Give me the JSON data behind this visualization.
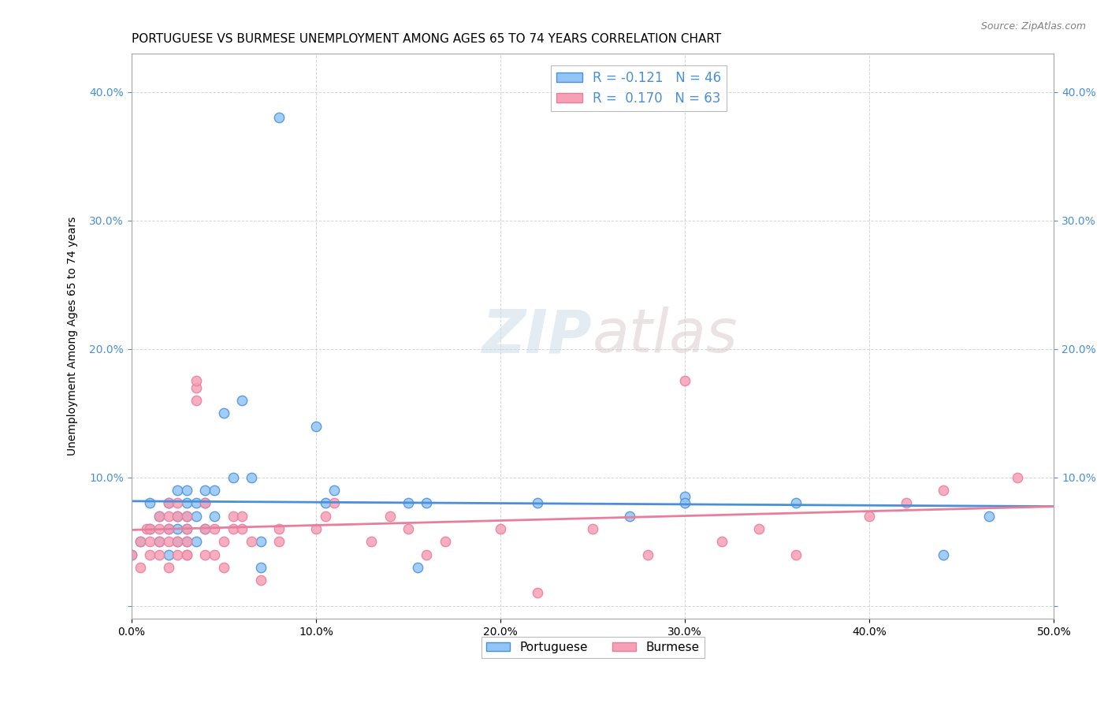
{
  "title": "PORTUGUESE VS BURMESE UNEMPLOYMENT AMONG AGES 65 TO 74 YEARS CORRELATION CHART",
  "source": "Source: ZipAtlas.com",
  "ylabel": "Unemployment Among Ages 65 to 74 years",
  "xlim": [
    0,
    0.5
  ],
  "ylim": [
    -0.01,
    0.43
  ],
  "xticks": [
    0.0,
    0.1,
    0.2,
    0.3,
    0.4,
    0.5
  ],
  "yticks": [
    0.0,
    0.1,
    0.2,
    0.3,
    0.4
  ],
  "ytick_labels": [
    "",
    "10.0%",
    "20.0%",
    "30.0%",
    "40.0%"
  ],
  "xtick_labels": [
    "0.0%",
    "10.0%",
    "20.0%",
    "30.0%",
    "40.0%",
    "50.0%"
  ],
  "portuguese_color": "#92C5F5",
  "burmese_color": "#F5A0B5",
  "portuguese_line_color": "#4A90D9",
  "burmese_line_color": "#E87E9E",
  "portuguese_R": -0.121,
  "portuguese_N": 46,
  "burmese_R": 0.17,
  "burmese_N": 63,
  "portuguese_scatter_x": [
    0.0,
    0.005,
    0.01,
    0.01,
    0.015,
    0.015,
    0.02,
    0.02,
    0.02,
    0.025,
    0.025,
    0.025,
    0.025,
    0.03,
    0.03,
    0.03,
    0.03,
    0.03,
    0.035,
    0.035,
    0.035,
    0.04,
    0.04,
    0.04,
    0.045,
    0.045,
    0.05,
    0.055,
    0.06,
    0.065,
    0.07,
    0.07,
    0.08,
    0.1,
    0.105,
    0.11,
    0.15,
    0.155,
    0.16,
    0.22,
    0.27,
    0.3,
    0.3,
    0.36,
    0.44,
    0.465
  ],
  "portuguese_scatter_y": [
    0.04,
    0.05,
    0.06,
    0.08,
    0.05,
    0.07,
    0.04,
    0.06,
    0.08,
    0.05,
    0.07,
    0.09,
    0.06,
    0.05,
    0.07,
    0.08,
    0.09,
    0.06,
    0.05,
    0.07,
    0.08,
    0.06,
    0.08,
    0.09,
    0.07,
    0.09,
    0.15,
    0.1,
    0.16,
    0.1,
    0.05,
    0.03,
    0.38,
    0.14,
    0.08,
    0.09,
    0.08,
    0.03,
    0.08,
    0.08,
    0.07,
    0.085,
    0.08,
    0.08,
    0.04,
    0.07
  ],
  "burmese_scatter_x": [
    0.0,
    0.005,
    0.005,
    0.008,
    0.01,
    0.01,
    0.01,
    0.015,
    0.015,
    0.015,
    0.015,
    0.02,
    0.02,
    0.02,
    0.02,
    0.02,
    0.025,
    0.025,
    0.025,
    0.025,
    0.03,
    0.03,
    0.03,
    0.03,
    0.03,
    0.035,
    0.035,
    0.035,
    0.04,
    0.04,
    0.04,
    0.045,
    0.045,
    0.05,
    0.05,
    0.055,
    0.055,
    0.06,
    0.06,
    0.065,
    0.07,
    0.08,
    0.08,
    0.1,
    0.105,
    0.11,
    0.13,
    0.14,
    0.15,
    0.16,
    0.17,
    0.2,
    0.22,
    0.25,
    0.28,
    0.3,
    0.32,
    0.34,
    0.36,
    0.4,
    0.42,
    0.44,
    0.48
  ],
  "burmese_scatter_y": [
    0.04,
    0.03,
    0.05,
    0.06,
    0.04,
    0.05,
    0.06,
    0.04,
    0.05,
    0.06,
    0.07,
    0.03,
    0.05,
    0.06,
    0.07,
    0.08,
    0.04,
    0.05,
    0.07,
    0.08,
    0.04,
    0.05,
    0.06,
    0.04,
    0.07,
    0.17,
    0.175,
    0.16,
    0.08,
    0.06,
    0.04,
    0.06,
    0.04,
    0.05,
    0.03,
    0.06,
    0.07,
    0.07,
    0.06,
    0.05,
    0.02,
    0.06,
    0.05,
    0.06,
    0.07,
    0.08,
    0.05,
    0.07,
    0.06,
    0.04,
    0.05,
    0.06,
    0.01,
    0.06,
    0.04,
    0.175,
    0.05,
    0.06,
    0.04,
    0.07,
    0.08,
    0.09,
    0.1
  ],
  "watermark_zip": "ZIP",
  "watermark_atlas": "atlas",
  "background_color": "#FFFFFF",
  "grid_color": "#CCCCCC",
  "title_fontsize": 11,
  "axis_label_fontsize": 10,
  "tick_fontsize": 10,
  "legend_label_port": "R = -0.121   N = 46",
  "legend_label_burm": "R =  0.170   N = 63",
  "bottom_legend_port": "Portuguese",
  "bottom_legend_burm": "Burmese"
}
